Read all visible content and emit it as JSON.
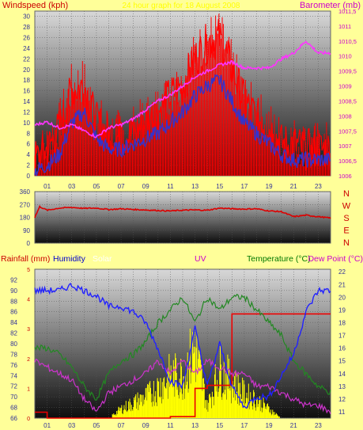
{
  "colors": {
    "background": "#ffff99",
    "wind": "#ff0000",
    "gust_shade": "#3333cc",
    "barometer": "#ff33ff",
    "direction": "#dd0000",
    "humidity": "#2222ff",
    "temperature": "#228822",
    "dewpoint": "#cc33cc",
    "solar": "#ffff00",
    "rain": "#ee0000",
    "uv": "#ff00ff",
    "axis_text": "#333399"
  },
  "chart_data": [
    {
      "type": "line",
      "left_title": "Windspeed (kph)",
      "center_title": "24 hour graph for 18 August 2008",
      "right_title": "Barometer (mb)",
      "x_ticks": [
        "01",
        "03",
        "05",
        "07",
        "09",
        "11",
        "13",
        "15",
        "17",
        "19",
        "21",
        "23"
      ],
      "ylim": [
        0,
        31
      ],
      "y_ticks": [
        0,
        2,
        4,
        6,
        8,
        10,
        12,
        14,
        16,
        18,
        20,
        22,
        24,
        26,
        28,
        30
      ],
      "y2lim": [
        1006,
        1011.5
      ],
      "y2_ticks": [
        "1006",
        "1006,5",
        "1007",
        "1007,5",
        "1008",
        "1008,5",
        "1009",
        "1009,5",
        "1010",
        "1010,5",
        "1011",
        "1011,5"
      ],
      "series": [
        {
          "name": "wind",
          "x": [
            0,
            1,
            2,
            3,
            4,
            5,
            6,
            7,
            8,
            9,
            10,
            11,
            12,
            13,
            14,
            15,
            16,
            17,
            18,
            19,
            20,
            21,
            22,
            23,
            24
          ],
          "values": [
            3,
            5,
            9,
            16,
            17,
            10,
            8,
            7,
            8,
            10,
            12,
            15,
            17,
            22,
            25,
            26,
            20,
            14,
            11,
            9,
            6,
            6,
            5,
            5,
            5
          ]
        },
        {
          "name": "gust",
          "x": [
            0,
            1,
            2,
            3,
            4,
            5,
            6,
            7,
            8,
            9,
            10,
            11,
            12,
            13,
            14,
            15,
            16,
            17,
            18,
            19,
            20,
            21,
            22,
            23,
            24
          ],
          "values": [
            1,
            2,
            4,
            10,
            12,
            7,
            5,
            5,
            6,
            7,
            8,
            10,
            12,
            15,
            17,
            18,
            14,
            10,
            8,
            6,
            4,
            3,
            3,
            3,
            3
          ]
        },
        {
          "name": "barometer",
          "x": [
            0,
            1,
            2,
            3,
            4,
            5,
            6,
            7,
            8,
            9,
            10,
            11,
            12,
            13,
            14,
            15,
            16,
            17,
            18,
            19,
            20,
            21,
            22,
            23,
            24
          ],
          "values": [
            1007.7,
            1007.8,
            1007.6,
            1007.7,
            1007.5,
            1007.3,
            1007.6,
            1007.7,
            1007.9,
            1008.2,
            1008.5,
            1008.7,
            1009.0,
            1009.3,
            1009.5,
            1009.7,
            1009.8,
            1009.6,
            1009.6,
            1009.6,
            1009.9,
            1010.1,
            1010.5,
            1010.1,
            1010.1
          ]
        }
      ]
    },
    {
      "type": "line",
      "title": "",
      "ylim": [
        0,
        360
      ],
      "y_ticks": [
        0,
        90,
        180,
        270,
        360
      ],
      "compass": [
        "N",
        "W",
        "S",
        "E",
        "N"
      ],
      "series": [
        {
          "name": "direction",
          "x": [
            0,
            0.4,
            1,
            2,
            3,
            4,
            5,
            6,
            7,
            8,
            9,
            10,
            11,
            12,
            13,
            14,
            15,
            16,
            17,
            18,
            19,
            20,
            21,
            22,
            23,
            24
          ],
          "values": [
            180,
            255,
            230,
            245,
            250,
            243,
            245,
            235,
            240,
            235,
            232,
            228,
            225,
            230,
            232,
            230,
            245,
            240,
            238,
            240,
            225,
            220,
            185,
            195,
            185,
            175
          ]
        }
      ]
    },
    {
      "type": "line",
      "left_title": "Rainfall (mm)",
      "humidity_title": "Humidity",
      "solar_title": "Solar",
      "uv_title": "UV",
      "temp_title": "Temperature (°C)",
      "dew_title": "Dew Point (°C)",
      "rain_lim": [
        0,
        5
      ],
      "rain_ticks": [
        0,
        1,
        2,
        3,
        4,
        5
      ],
      "hum_lim": [
        66,
        94
      ],
      "hum_ticks": [
        66,
        68,
        70,
        72,
        74,
        76,
        78,
        80,
        82,
        84,
        86,
        88,
        90,
        92
      ],
      "temp_lim": [
        10.5,
        22.2
      ],
      "temp_ticks": [
        11,
        12,
        13,
        14,
        15,
        16,
        17,
        18,
        19,
        20,
        21,
        22
      ],
      "x_ticks": [
        "01",
        "03",
        "05",
        "07",
        "09",
        "11",
        "13",
        "15",
        "17",
        "19",
        "21",
        "23"
      ],
      "series": [
        {
          "name": "humidity",
          "x": [
            0,
            1,
            2,
            3,
            4,
            5,
            6,
            7,
            8,
            9,
            10,
            11,
            12,
            13,
            14,
            15,
            16,
            17,
            18,
            19,
            20,
            21,
            22,
            23,
            24
          ],
          "values": [
            90,
            90,
            90,
            91,
            90,
            89,
            87,
            87,
            86,
            84,
            79,
            73,
            72,
            83,
            72,
            80,
            72,
            68,
            70,
            70,
            74,
            78,
            86,
            90,
            90
          ]
        },
        {
          "name": "temperature",
          "x": [
            0,
            1,
            2,
            3,
            4,
            5,
            6,
            7,
            8,
            9,
            10,
            11,
            12,
            13,
            14,
            15,
            16,
            17,
            18,
            19,
            20,
            21,
            22,
            23,
            24
          ],
          "values": [
            16,
            16,
            15.5,
            14.5,
            13,
            12,
            14,
            15,
            15.5,
            16.5,
            18,
            19,
            20,
            18,
            20,
            19,
            20,
            20,
            19,
            18,
            17,
            15,
            14,
            13,
            12.5
          ]
        },
        {
          "name": "dewpoint",
          "x": [
            0,
            1,
            2,
            3,
            4,
            5,
            6,
            7,
            8,
            9,
            10,
            11,
            12,
            13,
            14,
            15,
            16,
            17,
            18,
            19,
            20,
            21,
            22,
            23,
            24
          ],
          "values": [
            15,
            14.5,
            14,
            13.5,
            12,
            11,
            12.5,
            13,
            13.5,
            14,
            15,
            14,
            15,
            14,
            15,
            14.5,
            14,
            14,
            13,
            13,
            12.5,
            12,
            11.5,
            11.5,
            11
          ]
        },
        {
          "name": "solar",
          "x": [
            0,
            6,
            7,
            8,
            9,
            10,
            11,
            12,
            13,
            14,
            15,
            16,
            17,
            18,
            19,
            20,
            24
          ],
          "values": [
            0,
            0,
            0.3,
            0.5,
            0.7,
            1.0,
            1.4,
            1.4,
            2.3,
            0.4,
            1.6,
            1.2,
            0.8,
            0.6,
            0.3,
            0,
            0
          ]
        },
        {
          "name": "rainfall",
          "x": [
            0,
            1,
            2,
            3,
            4,
            5,
            6,
            7,
            8,
            9,
            10,
            11,
            12,
            13,
            14,
            15,
            16,
            17,
            18,
            19,
            20,
            21,
            22,
            23,
            24
          ],
          "values": [
            0.2,
            0,
            0,
            0,
            0,
            0,
            0,
            0,
            0,
            0,
            0,
            0.05,
            0.05,
            1.0,
            1.1,
            1.1,
            3.5,
            3.5,
            3.5,
            3.5,
            3.5,
            3.5,
            3.5,
            3.5,
            3.5
          ]
        }
      ]
    }
  ]
}
